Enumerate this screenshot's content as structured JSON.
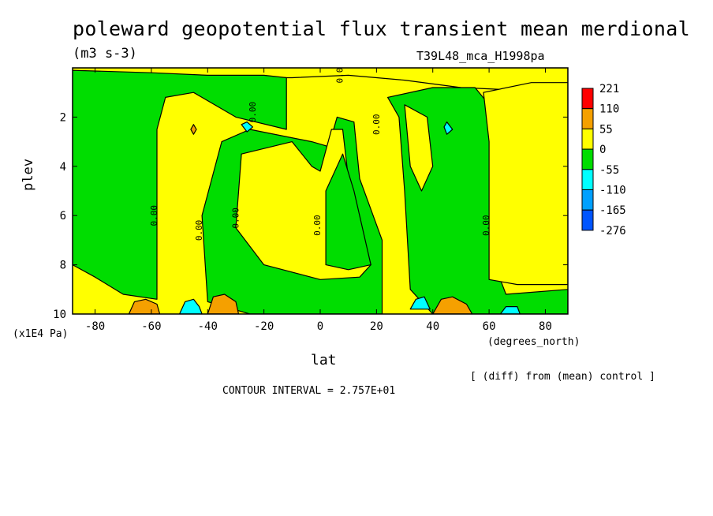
{
  "chart_data": {
    "type": "heatmap",
    "title": "poleward geopotential flux transient mean merdional",
    "units": "(m3 s-3)",
    "run_label": "T39L48_mca_H1998pa",
    "xlabel": "lat",
    "x_units": "(degrees_north)",
    "ylabel": "plev",
    "y_units": "(x1E4 Pa)",
    "note": "[ (diff) from (mean) control ]",
    "contour_interval_text": "CONTOUR INTERVAL = 2.757E+01",
    "xlim": [
      -88,
      88
    ],
    "ylim": [
      0,
      10
    ],
    "y_inverted": true,
    "x_ticks": [
      "-80",
      "-60",
      "-40",
      "-20",
      "0",
      "20",
      "40",
      "60",
      "80"
    ],
    "x_tick_values": [
      -80,
      -60,
      -40,
      -20,
      0,
      20,
      40,
      60,
      80
    ],
    "y_ticks": [
      "2",
      "4",
      "6",
      "8",
      "10"
    ],
    "y_tick_values": [
      2,
      4,
      6,
      8,
      10
    ],
    "contour_label": "0.00",
    "colorbar": {
      "labels": [
        "221",
        "110",
        "55",
        "0",
        "-55",
        "-110",
        "-165",
        "-276"
      ],
      "colors": [
        "#ff0000",
        "#f5a000",
        "#ffff00",
        "#00dd00",
        "#00ffff",
        "#00a0ff",
        "#0055ff"
      ]
    },
    "regions": [
      {
        "name": "yellow-band-a",
        "band": "0 to 55",
        "points": [
          [
            -88,
            1
          ],
          [
            -70,
            0.8
          ],
          [
            -50,
            0.5
          ],
          [
            -30,
            0.4
          ],
          [
            -10,
            0.4
          ],
          [
            10,
            0.3
          ],
          [
            30,
            0.5
          ],
          [
            50,
            0.8
          ],
          [
            88,
            1
          ],
          [
            88,
            0
          ],
          [
            -88,
            0
          ]
        ]
      },
      {
        "name": "green-south",
        "band": "-55 to 0",
        "points": [
          [
            -88,
            0.1
          ],
          [
            -60,
            0.2
          ],
          [
            -40,
            0.3
          ],
          [
            -20,
            0.3
          ],
          [
            -12,
            0.4
          ],
          [
            -12,
            2.5
          ],
          [
            -30,
            2
          ],
          [
            -45,
            1
          ],
          [
            -55,
            1.2
          ],
          [
            -58,
            2.5
          ],
          [
            -58,
            9.4
          ],
          [
            -70,
            9.2
          ],
          [
            -80,
            8.5
          ],
          [
            -88,
            8
          ]
        ]
      },
      {
        "name": "green-center",
        "band": "-55 to 0",
        "points": [
          [
            -3,
            3
          ],
          [
            3,
            3.2
          ],
          [
            6,
            2
          ],
          [
            12,
            2.2
          ],
          [
            14,
            4.5
          ],
          [
            22,
            7
          ],
          [
            22,
            10
          ],
          [
            -25,
            10
          ],
          [
            -40,
            9.5
          ],
          [
            -42,
            6
          ],
          [
            -35,
            3
          ],
          [
            -25,
            2.5
          ]
        ]
      },
      {
        "name": "yellow-center",
        "band": "0 to 55",
        "points": [
          [
            -28,
            3.5
          ],
          [
            -10,
            3
          ],
          [
            -3,
            4
          ],
          [
            0,
            4.2
          ],
          [
            4,
            2.5
          ],
          [
            8,
            2.5
          ],
          [
            10,
            4.5
          ],
          [
            18,
            8
          ],
          [
            14,
            8.5
          ],
          [
            0,
            8.6
          ],
          [
            -20,
            8
          ],
          [
            -30,
            6.5
          ]
        ]
      },
      {
        "name": "green-center-inner",
        "band": "-55 to 0",
        "points": [
          [
            2,
            5
          ],
          [
            8,
            3.5
          ],
          [
            12,
            5
          ],
          [
            18,
            8
          ],
          [
            10,
            8.2
          ],
          [
            2,
            8
          ]
        ]
      },
      {
        "name": "green-north",
        "band": "-55 to 0",
        "points": [
          [
            24,
            1.2
          ],
          [
            40,
            0.8
          ],
          [
            55,
            0.8
          ],
          [
            60,
            1.5
          ],
          [
            62,
            8
          ],
          [
            66,
            9.2
          ],
          [
            88,
            9
          ],
          [
            88,
            10
          ],
          [
            40,
            10
          ],
          [
            32,
            9
          ],
          [
            30,
            5
          ],
          [
            28,
            2
          ]
        ]
      },
      {
        "name": "yellow-north",
        "band": "0 to 55",
        "points": [
          [
            58,
            1
          ],
          [
            75,
            0.6
          ],
          [
            88,
            0.6
          ],
          [
            88,
            8.8
          ],
          [
            70,
            8.8
          ],
          [
            60,
            8.6
          ],
          [
            60,
            3
          ]
        ]
      },
      {
        "name": "yellow-sub-north",
        "band": "0 to 55",
        "points": [
          [
            30,
            1.5
          ],
          [
            38,
            2
          ],
          [
            40,
            4
          ],
          [
            36,
            5
          ],
          [
            32,
            4
          ]
        ]
      },
      {
        "name": "orange-sp1",
        "band": "55 to 110",
        "points": [
          [
            -68,
            10
          ],
          [
            -66,
            9.5
          ],
          [
            -62,
            9.4
          ],
          [
            -58,
            9.6
          ],
          [
            -57,
            10
          ]
        ]
      },
      {
        "name": "orange-sp2",
        "band": "55 to 110",
        "points": [
          [
            -40,
            10
          ],
          [
            -38,
            9.3
          ],
          [
            -34,
            9.2
          ],
          [
            -30,
            9.5
          ],
          [
            -29,
            10
          ]
        ]
      },
      {
        "name": "orange-np",
        "band": "55 to 110",
        "points": [
          [
            40,
            10
          ],
          [
            43,
            9.4
          ],
          [
            47,
            9.3
          ],
          [
            52,
            9.6
          ],
          [
            54,
            10
          ]
        ]
      },
      {
        "name": "orange-dot",
        "band": "55 to 110",
        "points": [
          [
            -46,
            2.5
          ],
          [
            -45,
            2.3
          ],
          [
            -44,
            2.5
          ],
          [
            -45,
            2.7
          ]
        ]
      },
      {
        "name": "cyan-sp",
        "band": "-110 to -55",
        "points": [
          [
            -50,
            10
          ],
          [
            -48,
            9.5
          ],
          [
            -45,
            9.4
          ],
          [
            -43,
            9.7
          ],
          [
            -42,
            10
          ]
        ]
      },
      {
        "name": "cyan-np",
        "band": "-110 to -55",
        "points": [
          [
            32,
            9.8
          ],
          [
            34,
            9.4
          ],
          [
            37,
            9.3
          ],
          [
            39,
            9.8
          ]
        ]
      },
      {
        "name": "cyan-np2",
        "band": "-110 to -55",
        "points": [
          [
            64,
            10
          ],
          [
            66,
            9.7
          ],
          [
            70,
            9.7
          ],
          [
            71,
            10
          ]
        ]
      },
      {
        "name": "cyan-dot1",
        "band": "-110 to -55",
        "points": [
          [
            -28,
            2.3
          ],
          [
            -26,
            2.2
          ],
          [
            -24,
            2.4
          ],
          [
            -26,
            2.6
          ]
        ]
      },
      {
        "name": "cyan-dot2",
        "band": "-110 to -55",
        "points": [
          [
            44,
            2.4
          ],
          [
            45,
            2.2
          ],
          [
            47,
            2.5
          ],
          [
            45,
            2.7
          ]
        ]
      }
    ]
  }
}
